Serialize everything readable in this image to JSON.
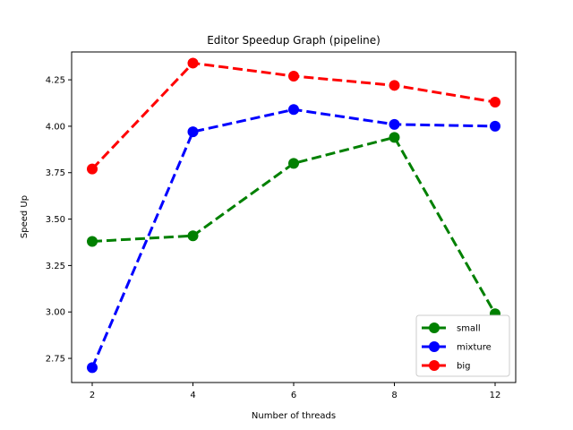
{
  "chart_data": {
    "type": "line",
    "title": "Editor Speedup Graph (pipeline)",
    "xlabel": "Number of threads",
    "ylabel": "Speed Up",
    "categories": [
      "2",
      "4",
      "6",
      "8",
      "12"
    ],
    "ylim": [
      2.62,
      4.4
    ],
    "yticks": [
      "2.75",
      "3.00",
      "3.25",
      "3.50",
      "3.75",
      "4.00",
      "4.25"
    ],
    "grid": false,
    "legend_position": "lower-right",
    "series": [
      {
        "name": "small",
        "color": "#008000",
        "values": [
          3.38,
          3.41,
          3.8,
          3.94,
          2.99
        ]
      },
      {
        "name": "mixture",
        "color": "#0000ff",
        "values": [
          2.7,
          3.97,
          4.09,
          4.01,
          4.0
        ]
      },
      {
        "name": "big",
        "color": "#ff0000",
        "values": [
          3.77,
          4.34,
          4.27,
          4.22,
          4.13
        ]
      }
    ]
  }
}
